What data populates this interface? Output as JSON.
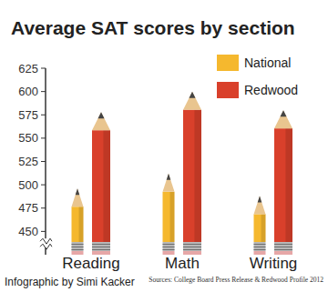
{
  "chart_data": {
    "type": "bar",
    "title": "Average SAT scores by section",
    "categories": [
      "Reading",
      "Math",
      "Writing"
    ],
    "series": [
      {
        "name": "National",
        "color": "#f5b82e",
        "values": [
          496,
          512,
          488
        ]
      },
      {
        "name": "Redwood",
        "color": "#d9402b",
        "values": [
          578,
          600,
          580
        ]
      }
    ],
    "ylim": [
      425,
      625
    ],
    "yticks": [
      450,
      475,
      500,
      525,
      550,
      575,
      600,
      625
    ],
    "grid": false,
    "legend": "top-right",
    "data_labels": false,
    "annotations": [
      "Infographic by Simi Kacker",
      "Sources: College Board Press Release & Redwood Profile 2012"
    ]
  }
}
